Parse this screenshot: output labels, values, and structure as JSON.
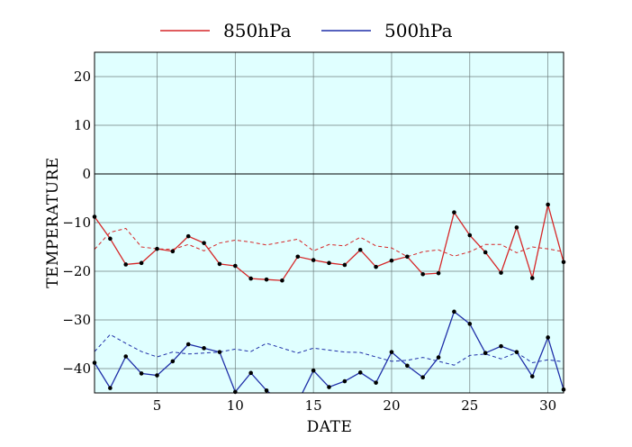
{
  "chart_data": {
    "type": "line",
    "xlabel": "DATE",
    "ylabel": "TEMPERATURE",
    "xlim": [
      1,
      31
    ],
    "ylim": [
      -45,
      25
    ],
    "xticks": [
      5,
      10,
      15,
      20,
      25,
      30
    ],
    "yticks": [
      20,
      10,
      0,
      -10,
      -20,
      -30,
      -40
    ],
    "grid": true,
    "zero_line": true,
    "legend_position": "top-center",
    "x": [
      1,
      2,
      3,
      4,
      5,
      6,
      7,
      8,
      9,
      10,
      11,
      12,
      13,
      14,
      15,
      16,
      17,
      18,
      19,
      20,
      21,
      22,
      23,
      24,
      25,
      26,
      27,
      28,
      29,
      30,
      31
    ],
    "series": [
      {
        "name": "850hPa",
        "color": "#d62728",
        "values": [
          -8.8,
          -13.3,
          -18.6,
          -18.3,
          -15.4,
          -15.9,
          -12.8,
          -14.2,
          -18.5,
          -18.9,
          -21.5,
          -21.7,
          -21.9,
          -17.0,
          -17.7,
          -18.3,
          -18.7,
          -15.6,
          -19.1,
          -17.8,
          -17.0,
          -20.6,
          -20.4,
          -7.9,
          -12.6,
          -16.1,
          -20.3,
          -11.0,
          -21.4,
          -6.3,
          -18.1
        ]
      },
      {
        "name": "500hPa",
        "color": "#1f2fa8",
        "values": [
          -38.8,
          -44.0,
          -37.5,
          -41.0,
          -41.4,
          -38.5,
          -35.0,
          -35.8,
          -36.6,
          -44.8,
          -40.9,
          -44.5,
          -47.0,
          -46.9,
          -40.4,
          -43.8,
          -42.6,
          -40.8,
          -42.9,
          -36.6,
          -39.4,
          -41.8,
          -37.7,
          -28.3,
          -30.8,
          -36.8,
          -35.4,
          -36.6,
          -41.6,
          -33.6,
          -44.3
        ]
      },
      {
        "color": "#d62728",
        "style": "dashed",
        "values": [
          -15.5,
          -12.0,
          -11.2,
          -15.0,
          -15.4,
          -15.5,
          -14.5,
          -15.8,
          -14.2,
          -13.6,
          -14.0,
          -14.6,
          -14.0,
          -13.4,
          -15.8,
          -14.5,
          -14.8,
          -13.0,
          -14.8,
          -15.2,
          -17.0,
          -16.0,
          -15.6,
          -16.9,
          -16.0,
          -14.5,
          -14.5,
          -16.2,
          -15.0,
          -15.4,
          -16.0
        ]
      },
      {
        "color": "#1f2fa8",
        "style": "dashed",
        "values": [
          -36.5,
          -33.0,
          -34.8,
          -36.5,
          -37.6,
          -36.6,
          -37.0,
          -36.8,
          -36.6,
          -36.0,
          -36.5,
          -34.8,
          -35.8,
          -36.8,
          -35.8,
          -36.2,
          -36.6,
          -36.7,
          -37.6,
          -38.5,
          -38.3,
          -37.7,
          -38.5,
          -39.3,
          -37.3,
          -37.0,
          -38.0,
          -36.7,
          -38.8,
          -38.2,
          -38.6
        ]
      }
    ]
  },
  "style": {
    "plot_background": "#e0ffff",
    "grid_color": "#6f7f7f",
    "zero_line_color": "#000000",
    "marker_color": "#000000"
  }
}
